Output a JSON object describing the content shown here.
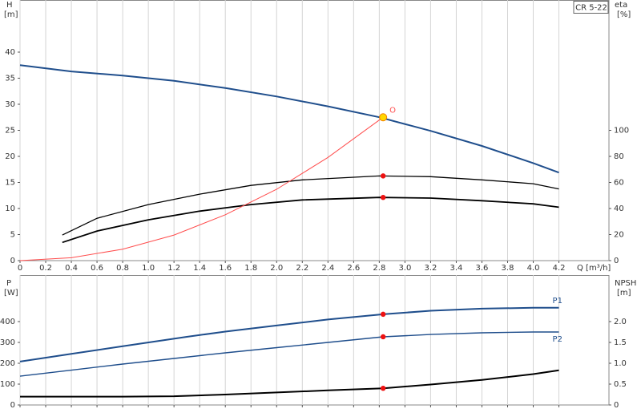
{
  "chart_data": [
    {
      "type": "line",
      "title": "CR 5-22",
      "x_label": "Q [m³/h]",
      "y_label": "H",
      "y_unit": "[m]",
      "y2_label": "eta",
      "y2_unit": "[%]",
      "xlim": [
        0,
        4.59
      ],
      "xticks": [
        0,
        0.2,
        0.4,
        0.6,
        0.8,
        {
          "value": 1,
          "label": "1.0"
        },
        1.2,
        1.4,
        1.6,
        1.8,
        {
          "value": 2,
          "label": "2.0"
        },
        2.2,
        2.4,
        2.6,
        2.8,
        {
          "value": 3,
          "label": "3.0"
        },
        3.2,
        3.4,
        3.6,
        3.8,
        {
          "value": 4,
          "label": "4.0"
        },
        4.2
      ],
      "show_xtick_labels": true,
      "ylim": [
        0,
        50
      ],
      "yticks": [
        0,
        5,
        10,
        15,
        20,
        25,
        30,
        35,
        40
      ],
      "y2lim": [
        0,
        200
      ],
      "y2ticks": [
        0,
        20,
        40,
        60,
        80,
        100
      ],
      "grid": "x",
      "series": [
        {
          "color": "#1f4e8c",
          "width": 2,
          "x": [
            0,
            0.4,
            0.8,
            1.2,
            1.6,
            2.0,
            2.4,
            2.8,
            3.2,
            3.6,
            4.0,
            4.2
          ],
          "values": [
            37.5,
            36.3,
            35.5,
            34.5,
            33.1,
            31.5,
            29.6,
            27.5,
            24.9,
            22.0,
            18.7,
            16.9
          ]
        },
        {
          "color": "#000000",
          "width": 1.3,
          "axis": "y2",
          "x": [
            0.33,
            0.6,
            1.0,
            1.4,
            1.8,
            2.2,
            2.8,
            3.2,
            3.6,
            4.0,
            4.2
          ],
          "values": [
            19.6,
            32.5,
            43,
            51,
            57.7,
            62,
            65,
            64.4,
            62,
            59,
            55
          ]
        },
        {
          "color": "#000000",
          "width": 1.8,
          "axis": "y2",
          "x": [
            0.33,
            0.6,
            1.0,
            1.4,
            1.8,
            2.2,
            2.8,
            3.2,
            3.6,
            4.0,
            4.2
          ],
          "values": [
            14,
            22.7,
            31.3,
            38,
            43,
            46.6,
            48.5,
            48,
            46,
            43.6,
            41
          ]
        },
        {
          "color": "#ff4d4d",
          "width": 1,
          "x": [
            0,
            0.4,
            0.8,
            1.2,
            1.6,
            2.0,
            2.4,
            2.83
          ],
          "values": [
            0,
            0.55,
            2.2,
            4.9,
            8.8,
            13.7,
            19.8,
            27.5
          ]
        }
      ],
      "operating_points": [
        {
          "x": 2.83,
          "y": 27.5,
          "color": "#ffd700"
        },
        {
          "x": 2.83,
          "y": 65,
          "axis": "y2",
          "color": "#ee1111"
        },
        {
          "x": 2.83,
          "y": 48.5,
          "axis": "y2",
          "color": "#ee1111"
        }
      ],
      "annotation": "O"
    },
    {
      "type": "line",
      "y_label": "P",
      "y_unit": "[W]",
      "y2_label": "NPSH",
      "y2_unit": "[m]",
      "xlim": [
        0,
        4.59
      ],
      "xticks": [
        0,
        0.2,
        0.4,
        0.6,
        0.8,
        1,
        1.2,
        1.4,
        1.6,
        1.8,
        2,
        2.2,
        2.4,
        2.6,
        2.8,
        3,
        3.2,
        3.4,
        3.6,
        3.8,
        4,
        4.2
      ],
      "show_xtick_labels": false,
      "ylim": [
        0,
        623
      ],
      "yticks": [
        0,
        100,
        200,
        300,
        400
      ],
      "y2lim": [
        0,
        3.115
      ],
      "y2ticks": [
        0,
        0.5,
        {
          "value": 1,
          "label": "1.0"
        },
        1.5,
        {
          "value": 2,
          "label": "2.0"
        }
      ],
      "grid": "x",
      "series": [
        {
          "name": "P1",
          "color": "#1f4e8c",
          "width": 2,
          "x": [
            0,
            0.4,
            0.8,
            1.3,
            1.6,
            2.0,
            2.4,
            2.83,
            3.2,
            3.6,
            4.0,
            4.2
          ],
          "values": [
            208,
            245,
            282,
            327,
            352,
            381,
            410,
            435,
            452,
            462,
            466,
            466
          ]
        },
        {
          "name": "P2",
          "color": "#1f4e8c",
          "width": 1.4,
          "x": [
            0,
            0.4,
            0.8,
            1.2,
            1.6,
            2.0,
            2.4,
            2.83,
            3.2,
            3.6,
            4.0,
            4.2
          ],
          "values": [
            138,
            167,
            196,
            223,
            250,
            275,
            300,
            327,
            338,
            346,
            350,
            350
          ]
        },
        {
          "color": "#000000",
          "width": 2,
          "axis": "y2",
          "x": [
            0,
            0.4,
            0.8,
            1.2,
            1.6,
            2.0,
            2.4,
            2.83,
            3.2,
            3.6,
            4.0,
            4.2
          ],
          "values": [
            0.2,
            0.2,
            0.2,
            0.21,
            0.25,
            0.3,
            0.35,
            0.4,
            0.49,
            0.6,
            0.74,
            0.83
          ]
        }
      ],
      "operating_points": [
        {
          "x": 2.83,
          "y": 435,
          "color": "#ee1111"
        },
        {
          "x": 2.83,
          "y": 327,
          "color": "#ee1111"
        },
        {
          "x": 2.83,
          "y": 0.4,
          "axis": "y2",
          "color": "#ee1111"
        }
      ]
    }
  ]
}
